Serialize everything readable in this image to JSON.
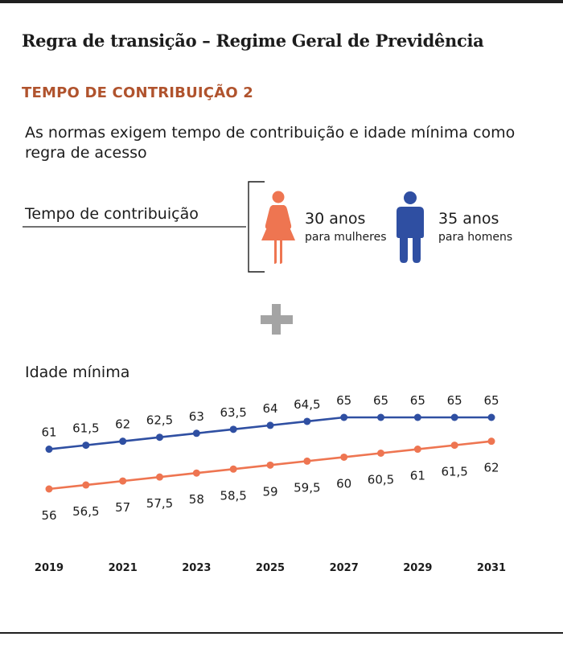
{
  "title": "Regra de transição – Regime Geral de Previdência",
  "subtitle": "TEMPO DE CONTRIBUIÇÃO 2",
  "description": "As normas exigem tempo de contribuição e idade mínima como regra de acesso",
  "requirements": {
    "label": "Tempo de contribuição",
    "women": {
      "value": "30 anos",
      "sub": "para mulheres",
      "icon": "woman-icon",
      "color": "#ee7551"
    },
    "men": {
      "value": "35 anos",
      "sub": "para homens",
      "icon": "man-icon",
      "color": "#2f4fa2"
    }
  },
  "plus_icon": "plus-icon",
  "age_label": "Idade mínima",
  "chart_data": {
    "type": "line",
    "x": [
      2019,
      2020,
      2021,
      2022,
      2023,
      2024,
      2025,
      2026,
      2027,
      2028,
      2029,
      2030,
      2031
    ],
    "x_tick_labels": [
      "2019",
      "2021",
      "2023",
      "2025",
      "2027",
      "2029",
      "2031"
    ],
    "series": [
      {
        "color": "#2f4fa2",
        "values": [
          61,
          61.5,
          62,
          62.5,
          63,
          63.5,
          64,
          64.5,
          65,
          65,
          65,
          65,
          65
        ],
        "labels": [
          "61",
          "61,5",
          "62",
          "62,5",
          "63",
          "63,5",
          "64",
          "64,5",
          "65",
          "65",
          "65",
          "65",
          "65"
        ]
      },
      {
        "color": "#ee7551",
        "values": [
          56,
          56.5,
          57,
          57.5,
          58,
          58.5,
          59,
          59.5,
          60,
          60.5,
          61,
          61.5,
          62
        ],
        "labels": [
          "56",
          "56,5",
          "57",
          "57,5",
          "58",
          "58,5",
          "59",
          "59,5",
          "60",
          "60,5",
          "61",
          "61,5",
          "62"
        ]
      }
    ]
  }
}
